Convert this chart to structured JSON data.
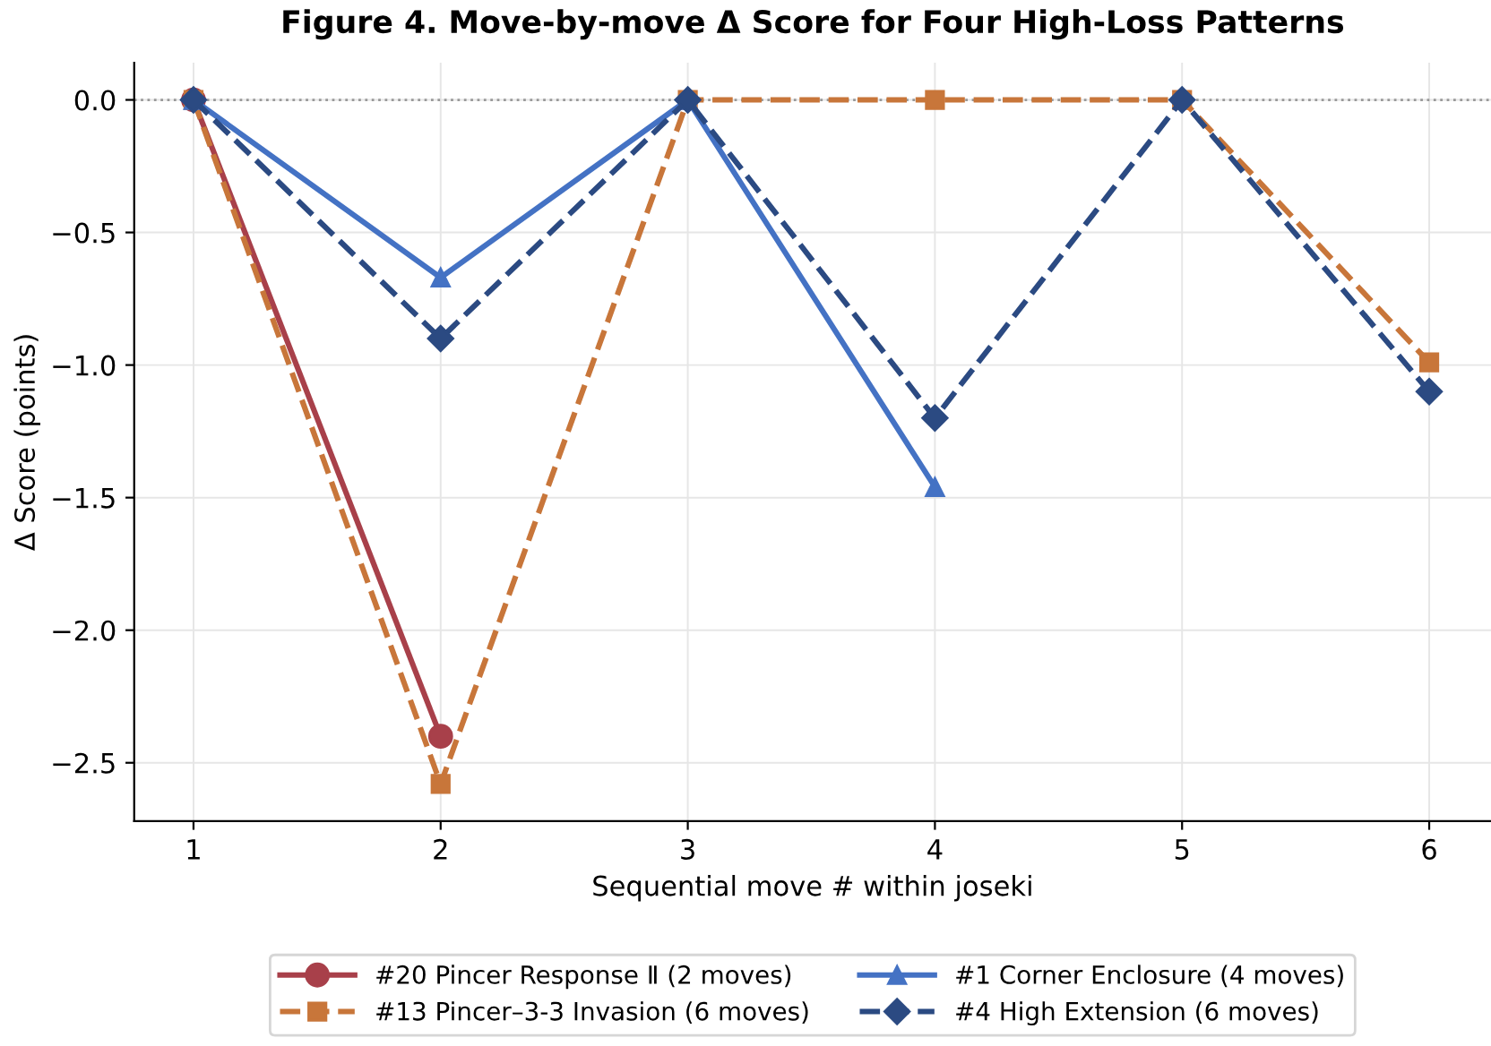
{
  "chart_data": {
    "type": "line",
    "title": "Figure 4. Move-by-move Δ Score for Four High-Loss Patterns",
    "xlabel": "Sequential move # within joseki",
    "ylabel": "Δ Score (points)",
    "x": [
      1,
      2,
      3,
      4,
      5,
      6
    ],
    "series": [
      {
        "name": "#20 Pincer Response Ⅱ (2 moves)",
        "color": "#a8404a",
        "marker": "circle",
        "line_style": "solid",
        "values": [
          0,
          -2.4,
          null,
          null,
          null,
          null
        ]
      },
      {
        "name": "#13 Pincer–3-3 Invasion (6 moves)",
        "color": "#c8763a",
        "marker": "square",
        "line_style": "dashed",
        "values": [
          0,
          -2.58,
          0,
          0,
          0,
          -0.99
        ]
      },
      {
        "name": "#1 Corner Enclosure (4 moves)",
        "color": "#4472c4",
        "marker": "triangle",
        "line_style": "solid",
        "values": [
          0,
          -0.67,
          0,
          -1.46,
          null,
          null
        ]
      },
      {
        "name": "#4 High Extension (6 moves)",
        "color": "#2b4a82",
        "marker": "diamond",
        "line_style": "dashed",
        "values": [
          0,
          -0.9,
          0,
          -1.2,
          0,
          -1.1
        ]
      }
    ],
    "xlim": [
      0.76,
      6.25
    ],
    "ylim": [
      -2.72,
      0.14
    ],
    "xticks": [
      1,
      2,
      3,
      4,
      5,
      6
    ],
    "yticks": [
      {
        "value": -2.5,
        "label": "−2.5"
      },
      {
        "value": -2.0,
        "label": "−2.0"
      },
      {
        "value": -1.5,
        "label": "−1.5"
      },
      {
        "value": -1.0,
        "label": "−1.0"
      },
      {
        "value": -0.5,
        "label": "−0.5"
      },
      {
        "value": 0.0,
        "label": "0.0"
      }
    ],
    "ref_lines": [
      {
        "axis": "y",
        "value": 0,
        "label": null,
        "color": "#999999",
        "line_style": "dotted"
      }
    ],
    "grid": true,
    "legend": "bottom"
  }
}
